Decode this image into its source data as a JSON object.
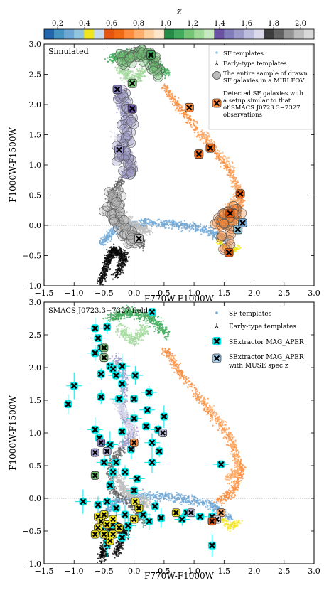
{
  "colorbar": {
    "label": "z",
    "ticks": [
      "0.2",
      "0.4",
      "0.6",
      "0.8",
      "1.0",
      "1.2",
      "1.4",
      "1.6",
      "1.8",
      "2.0"
    ],
    "colors": [
      "#2166ac",
      "#4393c3",
      "#6fa8d6",
      "#92c5de",
      "#f1e51b",
      "#c6dbef",
      "#e6550d",
      "#f16913",
      "#fd8d3c",
      "#fdae6b",
      "#fdd0a2",
      "#fee6ce",
      "#238b45",
      "#41ab5d",
      "#74c476",
      "#a1d99b",
      "#c7e9c0",
      "#6a51a3",
      "#807dba",
      "#9e9ac8",
      "#bcbddc",
      "#dadaeb",
      "#3c3c3c",
      "#636363",
      "#969696",
      "#bdbdbd",
      "#d9d9d9"
    ]
  },
  "chart_data": [
    {
      "type": "scatter",
      "title": "",
      "panel_label": "Simulated",
      "xlabel": "F770W-F1000W",
      "ylabel": "F1000W-F1500W",
      "xlim": [
        -1.5,
        3.0
      ],
      "ylim": [
        -1.0,
        3.0
      ],
      "xticks": [
        "−1.5",
        "−1.0",
        "−0.5",
        "0.0",
        "0.5",
        "1.0",
        "1.5",
        "2.0",
        "2.5",
        "3.0"
      ],
      "yticks": [
        "−1.0",
        "−0.5",
        "0.0",
        "0.5",
        "1.0",
        "1.5",
        "2.0",
        "2.5",
        "3.0"
      ],
      "legend_position": "top-right",
      "legend": [
        {
          "label": "SF templates",
          "marker": "dot"
        },
        {
          "label": "Early-type templates",
          "marker": "tri"
        },
        {
          "label": "The entire sample of drawn SF galaxies in a MIRI FOV",
          "marker": "circle"
        },
        {
          "label": "Detected SF galaxies with a setup similar to that of SMACS J0723.3−7327 observations",
          "marker": "xbox"
        }
      ],
      "series": [
        {
          "name": "Detected SF galaxies with a setup similar to that of SMACS J0723.3−7327 observations",
          "points": [
            [
              0.28,
              2.82,
              "#41ab5d"
            ],
            [
              -0.28,
              2.25,
              "#807dba"
            ],
            [
              -0.03,
              2.35,
              "#74c476"
            ],
            [
              -0.03,
              1.93,
              "#6a51a3"
            ],
            [
              -0.25,
              1.25,
              "#9e9ac8"
            ],
            [
              0.92,
              1.95,
              "#fd8d3c"
            ],
            [
              1.08,
              1.18,
              "#f16913"
            ],
            [
              1.27,
              1.28,
              "#f16913"
            ],
            [
              1.77,
              0.52,
              "#f16913"
            ],
            [
              1.6,
              0.2,
              "#e6550d"
            ],
            [
              1.73,
              -0.07,
              "#92c5de"
            ],
            [
              1.81,
              0.04,
              "#6fa8d6"
            ],
            [
              1.58,
              -0.45,
              "#e6550d"
            ],
            [
              0.08,
              -0.22,
              "#bdbdbd"
            ]
          ]
        }
      ]
    },
    {
      "type": "scatter",
      "title": "",
      "panel_label": "SMACS J0723.3−7327 field",
      "xlabel": "F770W-F1000W",
      "ylabel": "F1000W-F1500W",
      "xlim": [
        -1.5,
        3.0
      ],
      "ylim": [
        -1.0,
        3.0
      ],
      "xticks": [
        "−1.5",
        "−1.0",
        "−0.5",
        "0.0",
        "0.5",
        "1.0",
        "1.5",
        "2.0",
        "2.5",
        "3.0"
      ],
      "yticks": [
        "−1.0",
        "−0.5",
        "0.0",
        "0.5",
        "1.0",
        "1.5",
        "2.0",
        "2.5",
        "3.0"
      ],
      "legend_position": "top-right",
      "legend": [
        {
          "label": "SF templates",
          "marker": "dot"
        },
        {
          "label": "Early-type templates",
          "marker": "tri"
        },
        {
          "label": "SExtractor MAG_APER",
          "marker": "x-cyan"
        },
        {
          "label": "SExtractor MAG_APER with MUSE spec.z",
          "marker": "x-blue"
        }
      ],
      "series": [
        {
          "name": "SExtractor MAG_APER",
          "points": [
            [
              0.3,
              2.85
            ],
            [
              -0.65,
              2.6
            ],
            [
              -0.45,
              2.62
            ],
            [
              -0.6,
              2.45
            ],
            [
              -0.55,
              2.3
            ],
            [
              -0.65,
              2.22
            ],
            [
              -0.4,
              2.02
            ],
            [
              -0.2,
              2.02
            ],
            [
              -0.35,
              1.98
            ],
            [
              -0.3,
              1.88
            ],
            [
              -0.2,
              1.75
            ],
            [
              0.02,
              1.88
            ],
            [
              -0.55,
              1.9
            ],
            [
              -1.0,
              1.72
            ],
            [
              -1.1,
              1.44
            ],
            [
              0.25,
              1.62
            ],
            [
              0.0,
              1.52
            ],
            [
              -0.25,
              1.52
            ],
            [
              -0.55,
              1.55
            ],
            [
              0.22,
              1.35
            ],
            [
              0.5,
              1.25
            ],
            [
              0.0,
              1.22
            ],
            [
              0.2,
              1.1
            ],
            [
              -0.65,
              1.05
            ],
            [
              -0.58,
              0.92
            ],
            [
              0.4,
              1.05
            ],
            [
              -0.2,
              1.02
            ],
            [
              0.3,
              0.85
            ],
            [
              0.42,
              0.72
            ],
            [
              -0.4,
              0.82
            ],
            [
              -0.05,
              0.75
            ],
            [
              -0.5,
              0.55
            ],
            [
              -0.3,
              0.55
            ],
            [
              0.3,
              0.55
            ],
            [
              -0.15,
              0.4
            ],
            [
              0.05,
              0.3
            ],
            [
              -0.35,
              0.4
            ],
            [
              0.0,
              0.12
            ],
            [
              -0.4,
              0.2
            ],
            [
              -0.85,
              -0.05
            ],
            [
              -0.6,
              -0.1
            ],
            [
              -0.45,
              -0.05
            ],
            [
              -0.3,
              -0.15
            ],
            [
              -0.15,
              -0.25
            ],
            [
              0.35,
              -0.12
            ],
            [
              0.15,
              -0.25
            ],
            [
              0.45,
              -0.3
            ],
            [
              0.8,
              -0.32
            ],
            [
              0.88,
              -0.22
            ],
            [
              1.1,
              -0.28
            ],
            [
              1.3,
              -0.28
            ],
            [
              1.45,
              0.52
            ],
            [
              1.3,
              -0.72
            ],
            [
              -0.55,
              -0.5
            ],
            [
              -0.35,
              -0.4
            ],
            [
              -0.1,
              -0.42
            ],
            [
              0.25,
              -0.35
            ],
            [
              -0.2,
              -0.6
            ],
            [
              -0.45,
              -0.7
            ]
          ]
        },
        {
          "name": "SExtractor MAG_APER with MUSE spec.z",
          "points": [
            [
              -0.5,
              2.3,
              "#74c476"
            ],
            [
              -0.5,
              2.15,
              "#a1d99b"
            ],
            [
              -0.55,
              0.85,
              "#807dba"
            ],
            [
              -0.65,
              0.7,
              "#9e9ac8"
            ],
            [
              -0.45,
              0.72,
              "#bcbddc"
            ],
            [
              0.0,
              0.85,
              "#fd8d3c"
            ],
            [
              0.48,
              1.0,
              "#bcbddc"
            ],
            [
              -0.65,
              0.35,
              "#74c476"
            ],
            [
              1.45,
              -0.22,
              "#fdae6b"
            ],
            [
              1.38,
              -0.32,
              "#d9d9d9"
            ],
            [
              1.3,
              -0.35,
              "#e6550d"
            ],
            [
              0.95,
              -0.22,
              "#bcbddc"
            ],
            [
              0.7,
              -0.22,
              "#f1e51b"
            ],
            [
              0.02,
              -0.05,
              "#f1e51b"
            ],
            [
              0.08,
              -0.15,
              "#f1e51b"
            ],
            [
              -0.6,
              -0.28,
              "#f1e51b"
            ],
            [
              -0.5,
              -0.25,
              "#f1e51b"
            ],
            [
              -0.55,
              -0.35,
              "#f1e51b"
            ],
            [
              -0.45,
              -0.4,
              "#f1e51b"
            ],
            [
              -0.35,
              -0.32,
              "#f1e51b"
            ],
            [
              -0.6,
              -0.45,
              "#f1e51b"
            ],
            [
              -0.5,
              -0.55,
              "#f1e51b"
            ],
            [
              -0.35,
              -0.55,
              "#f1e51b"
            ],
            [
              -0.25,
              -0.45,
              "#f1e51b"
            ],
            [
              -0.4,
              -0.65,
              "#f1e51b"
            ],
            [
              -0.65,
              -0.55,
              "#f1e51b"
            ],
            [
              0.0,
              -0.32,
              "#f1e51b"
            ]
          ]
        }
      ]
    }
  ]
}
